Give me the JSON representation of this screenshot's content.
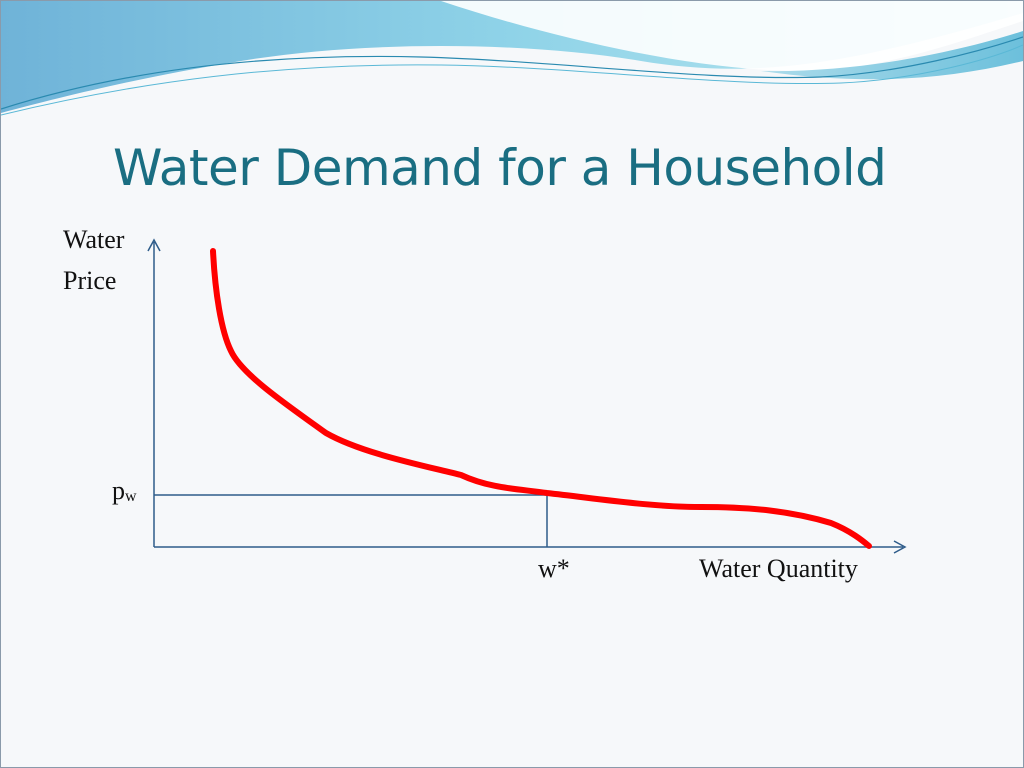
{
  "slide": {
    "title": "Water Demand for a Household"
  },
  "diagram": {
    "type": "demand-curve",
    "y_axis_label_line1": "Water",
    "y_axis_label_line2": "Price",
    "x_axis_label": "Water Quantity",
    "price_marker_base": "p",
    "price_marker_subscript": "w",
    "quantity_marker": "w*",
    "colors": {
      "curve": "#ff0000",
      "axes": "#2e5c8a",
      "guides": "#2e5c8a",
      "title": "#1a6e82"
    }
  }
}
